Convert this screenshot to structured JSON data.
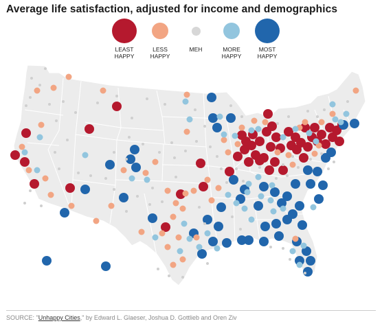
{
  "title": "Average life satisfaction, adjusted for income and demographics",
  "legend": {
    "items": [
      {
        "key": "least",
        "line1": "LEAST",
        "line2": "HAPPY",
        "color": "#b5192e"
      },
      {
        "key": "less",
        "line1": "LESS",
        "line2": "HAPPY",
        "color": "#f2a583"
      },
      {
        "key": "meh",
        "line1": "MEH",
        "line2": "",
        "color": "#d7d7d7"
      },
      {
        "key": "more",
        "line1": "MORE",
        "line2": "HAPPY",
        "color": "#92c5de"
      },
      {
        "key": "most",
        "line1": "MOST",
        "line2": "HAPPY",
        "color": "#2166ac"
      }
    ]
  },
  "map": {
    "land_color": "#ececec",
    "border_color": "#ffffff",
    "categories": {
      "least": {
        "color": "#b5192e"
      },
      "less": {
        "color": "#f2a583"
      },
      "meh": {
        "color": "#cfcfcf"
      },
      "more": {
        "color": "#92c5de"
      },
      "most": {
        "color": "#2166ac"
      }
    }
  },
  "source": {
    "prefix": "SOURCE: \"",
    "link_text": "Unhappy Cities",
    "suffix": ",\" by Edward L. Glaeser, Joshua D. Gottlieb and Oren Ziv"
  }
}
